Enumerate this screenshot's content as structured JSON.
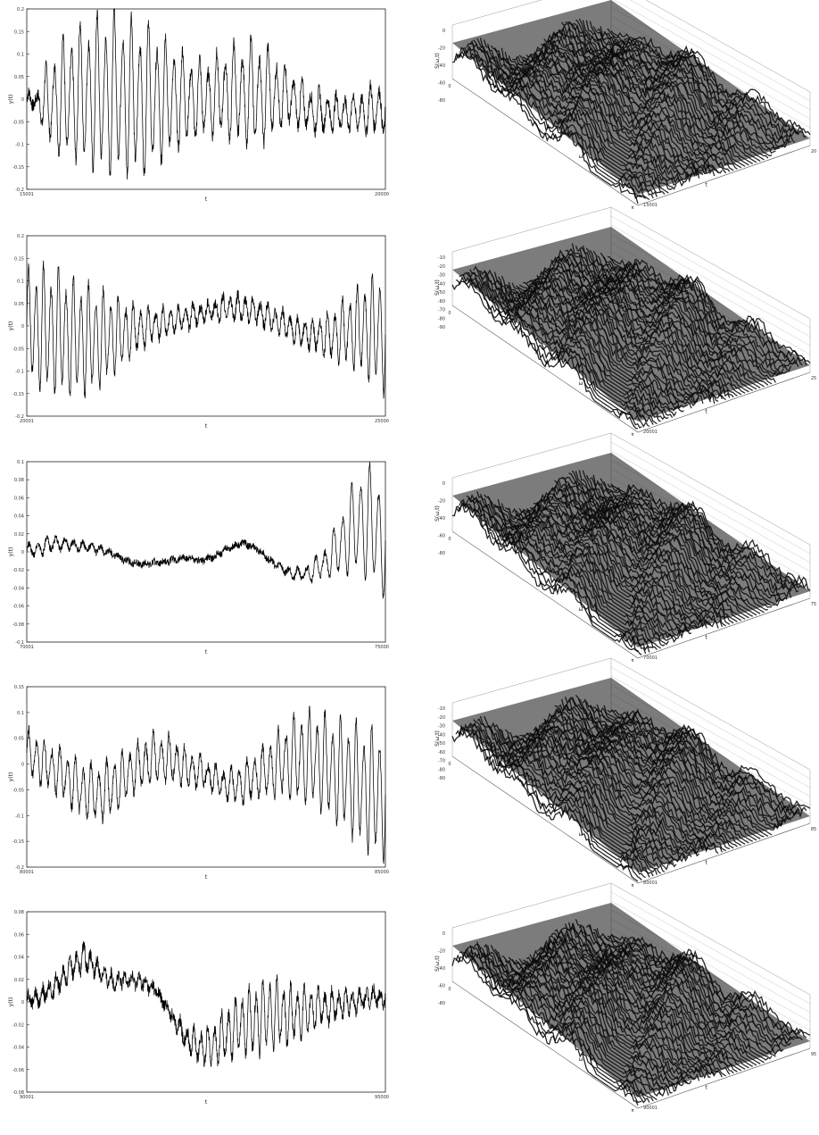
{
  "chart_data": [
    {
      "type": "line",
      "ylabel": "y(t)",
      "xlabel": "t",
      "xlim": [
        15001,
        20000
      ],
      "ylim": [
        -0.2,
        0.2
      ],
      "yticks": [
        "0.2",
        "0.15",
        "0.1",
        "0.05",
        "0",
        "-0.05",
        "-0.1",
        "-0.15",
        "-0.2"
      ],
      "xticks": [
        "15001",
        "20000"
      ],
      "envelope_x": [
        0.0,
        0.03,
        0.06,
        0.1,
        0.14,
        0.18,
        0.22,
        0.26,
        0.3,
        0.34,
        0.38,
        0.42,
        0.46,
        0.5,
        0.54,
        0.58,
        0.62,
        0.66,
        0.7,
        0.74,
        0.78,
        0.82,
        0.86,
        0.9,
        0.94,
        0.97,
        1.0
      ],
      "envelope_amp": [
        0.015,
        0.02,
        0.1,
        0.14,
        0.16,
        0.18,
        0.19,
        0.19,
        0.19,
        0.18,
        0.15,
        0.12,
        0.1,
        0.09,
        0.1,
        0.12,
        0.13,
        0.12,
        0.09,
        0.06,
        0.05,
        0.05,
        0.04,
        0.04,
        0.05,
        0.06,
        0.06
      ],
      "envelope_offset": [
        0.0,
        -0.005,
        -0.01,
        0.0,
        0.01,
        0.01,
        0.01,
        0.01,
        0.0,
        0.0,
        0.0,
        0.0,
        0.0,
        0.0,
        0.01,
        0.01,
        0.01,
        0.01,
        0.01,
        0.0,
        -0.02,
        -0.03,
        -0.03,
        -0.03,
        -0.03,
        -0.02,
        -0.02
      ],
      "cycles": 42,
      "noise": 0.015,
      "surface": {
        "zlabel": "S(ω,t)",
        "xlabel": "t",
        "ylabel": "ω",
        "xtick_end": "20",
        "xtick_start": "15001",
        "zticks": [
          "0",
          "-20",
          "-40",
          "-60",
          "-80"
        ],
        "ytick_end": "π",
        "ytick_start": "0"
      }
    },
    {
      "type": "line",
      "ylabel": "y(t)",
      "xlabel": "t",
      "xlim": [
        20001,
        25000
      ],
      "ylim": [
        -0.2,
        0.2
      ],
      "yticks": [
        "0.2",
        "0.15",
        "0.1",
        "0.05",
        "0",
        "-0.05",
        "-0.1",
        "-0.15",
        "-0.2"
      ],
      "xticks": [
        "20001",
        "25000"
      ],
      "envelope_x": [
        0.0,
        0.05,
        0.1,
        0.15,
        0.2,
        0.25,
        0.3,
        0.35,
        0.4,
        0.45,
        0.5,
        0.55,
        0.6,
        0.65,
        0.7,
        0.75,
        0.8,
        0.85,
        0.9,
        0.95,
        1.0
      ],
      "envelope_amp": [
        0.13,
        0.15,
        0.15,
        0.14,
        0.12,
        0.09,
        0.06,
        0.04,
        0.03,
        0.03,
        0.02,
        0.03,
        0.03,
        0.03,
        0.03,
        0.03,
        0.04,
        0.06,
        0.09,
        0.12,
        0.16
      ],
      "envelope_offset": [
        0.0,
        -0.01,
        -0.02,
        -0.03,
        -0.03,
        -0.02,
        -0.01,
        0.0,
        0.01,
        0.02,
        0.03,
        0.04,
        0.04,
        0.03,
        0.01,
        -0.01,
        -0.02,
        -0.02,
        -0.01,
        -0.01,
        -0.01
      ],
      "cycles": 48,
      "noise": 0.012,
      "surface": {
        "zlabel": "S(ω,t)",
        "xlabel": "t",
        "ylabel": "ω",
        "xtick_end": "25",
        "xtick_start": "20001",
        "zticks": [
          "-10",
          "-20",
          "-30",
          "-40",
          "-50",
          "-60",
          "-70",
          "-80",
          "-90"
        ],
        "ytick_end": "π",
        "ytick_start": "0"
      }
    },
    {
      "type": "line",
      "ylabel": "y(t)",
      "xlabel": "t",
      "xlim": [
        70001,
        75000
      ],
      "ylim": [
        -0.1,
        0.1
      ],
      "yticks": [
        "0.1",
        "0.08",
        "0.06",
        "0.04",
        "0.02",
        "0",
        "-0.02",
        "-0.04",
        "-0.06",
        "-0.08",
        "-0.1"
      ],
      "xticks": [
        "70001",
        "75000"
      ],
      "envelope_x": [
        0.0,
        0.04,
        0.08,
        0.12,
        0.16,
        0.2,
        0.24,
        0.28,
        0.32,
        0.36,
        0.4,
        0.44,
        0.48,
        0.52,
        0.56,
        0.6,
        0.64,
        0.68,
        0.72,
        0.76,
        0.8,
        0.84,
        0.88,
        0.92,
        0.96,
        1.0
      ],
      "envelope_amp": [
        0.008,
        0.009,
        0.008,
        0.006,
        0.005,
        0.004,
        0.003,
        0.002,
        0.002,
        0.002,
        0.002,
        0.002,
        0.002,
        0.002,
        0.002,
        0.002,
        0.002,
        0.003,
        0.005,
        0.008,
        0.012,
        0.02,
        0.04,
        0.06,
        0.07,
        0.07
      ],
      "envelope_offset": [
        0.0,
        0.005,
        0.01,
        0.008,
        0.006,
        0.003,
        -0.002,
        -0.01,
        -0.014,
        -0.012,
        -0.01,
        -0.006,
        -0.01,
        -0.006,
        0.004,
        0.01,
        0.004,
        -0.01,
        -0.02,
        -0.026,
        -0.02,
        -0.01,
        0.01,
        0.03,
        0.03,
        0.01
      ],
      "cycles": 40,
      "noise": 0.004,
      "surface": {
        "zlabel": "S(ω,t)",
        "xlabel": "t",
        "ylabel": "ω",
        "xtick_end": "75",
        "xtick_start": "70001",
        "zticks": [
          "0",
          "-20",
          "-40",
          "-60",
          "-80"
        ],
        "ytick_end": "π",
        "ytick_start": "0"
      }
    },
    {
      "type": "line",
      "ylabel": "y(t)",
      "xlabel": "t",
      "xlim": [
        80001,
        85000
      ],
      "ylim": [
        -0.2,
        0.15
      ],
      "yticks": [
        "0.15",
        "0.1",
        "0.05",
        "0",
        "-0.05",
        "-0.1",
        "-0.15",
        "-0.2"
      ],
      "xticks": [
        "80001",
        "85000"
      ],
      "envelope_x": [
        0.0,
        0.05,
        0.1,
        0.15,
        0.2,
        0.25,
        0.3,
        0.35,
        0.4,
        0.45,
        0.5,
        0.55,
        0.6,
        0.65,
        0.7,
        0.75,
        0.8,
        0.85,
        0.9,
        0.95,
        1.0
      ],
      "envelope_amp": [
        0.05,
        0.05,
        0.05,
        0.06,
        0.06,
        0.06,
        0.05,
        0.05,
        0.05,
        0.04,
        0.03,
        0.03,
        0.04,
        0.05,
        0.07,
        0.09,
        0.1,
        0.11,
        0.12,
        0.13,
        0.14
      ],
      "envelope_offset": [
        0.02,
        0.0,
        -0.02,
        -0.05,
        -0.06,
        -0.04,
        -0.01,
        0.01,
        0.01,
        -0.01,
        -0.02,
        -0.04,
        -0.04,
        -0.02,
        0.0,
        0.01,
        0.01,
        -0.01,
        -0.03,
        -0.05,
        -0.06
      ],
      "cycles": 46,
      "noise": 0.01,
      "surface": {
        "zlabel": "S(ω,t)",
        "xlabel": "t",
        "ylabel": "ω",
        "xtick_end": "85",
        "xtick_start": "80001",
        "zticks": [
          "-10",
          "-20",
          "-30",
          "-40",
          "-50",
          "-60",
          "-70",
          "-80",
          "-90"
        ],
        "ytick_end": "π",
        "ytick_start": "0"
      }
    },
    {
      "type": "line",
      "ylabel": "y(t)",
      "xlabel": "t",
      "xlim": [
        90001,
        95000
      ],
      "ylim": [
        -0.08,
        0.08
      ],
      "yticks": [
        "0.08",
        "0.06",
        "0.04",
        "0.02",
        "0",
        "-0.02",
        "-0.04",
        "-0.06",
        "-0.08"
      ],
      "xticks": [
        "90001",
        "95000"
      ],
      "envelope_x": [
        0.0,
        0.04,
        0.08,
        0.12,
        0.16,
        0.2,
        0.24,
        0.28,
        0.32,
        0.36,
        0.4,
        0.44,
        0.48,
        0.52,
        0.56,
        0.6,
        0.64,
        0.68,
        0.72,
        0.76,
        0.8,
        0.84,
        0.88,
        0.92,
        0.96,
        1.0
      ],
      "envelope_amp": [
        0.006,
        0.008,
        0.01,
        0.012,
        0.012,
        0.008,
        0.006,
        0.005,
        0.005,
        0.004,
        0.004,
        0.01,
        0.015,
        0.02,
        0.025,
        0.03,
        0.034,
        0.036,
        0.03,
        0.025,
        0.02,
        0.015,
        0.012,
        0.01,
        0.008,
        0.008
      ],
      "envelope_offset": [
        0.002,
        0.005,
        0.015,
        0.03,
        0.04,
        0.028,
        0.018,
        0.02,
        0.018,
        0.01,
        -0.01,
        -0.03,
        -0.04,
        -0.038,
        -0.028,
        -0.02,
        -0.015,
        -0.01,
        -0.012,
        -0.01,
        -0.005,
        -0.005,
        -0.002,
        0.0,
        0.004,
        0.004
      ],
      "cycles": 52,
      "noise": 0.006,
      "surface": {
        "zlabel": "S(ω,t)",
        "xlabel": "t",
        "ylabel": "ω",
        "xtick_end": "95",
        "xtick_start": "90001",
        "zticks": [
          "0",
          "-20",
          "-40",
          "-60",
          "-80"
        ],
        "ytick_end": "π",
        "ytick_start": "0"
      }
    }
  ]
}
